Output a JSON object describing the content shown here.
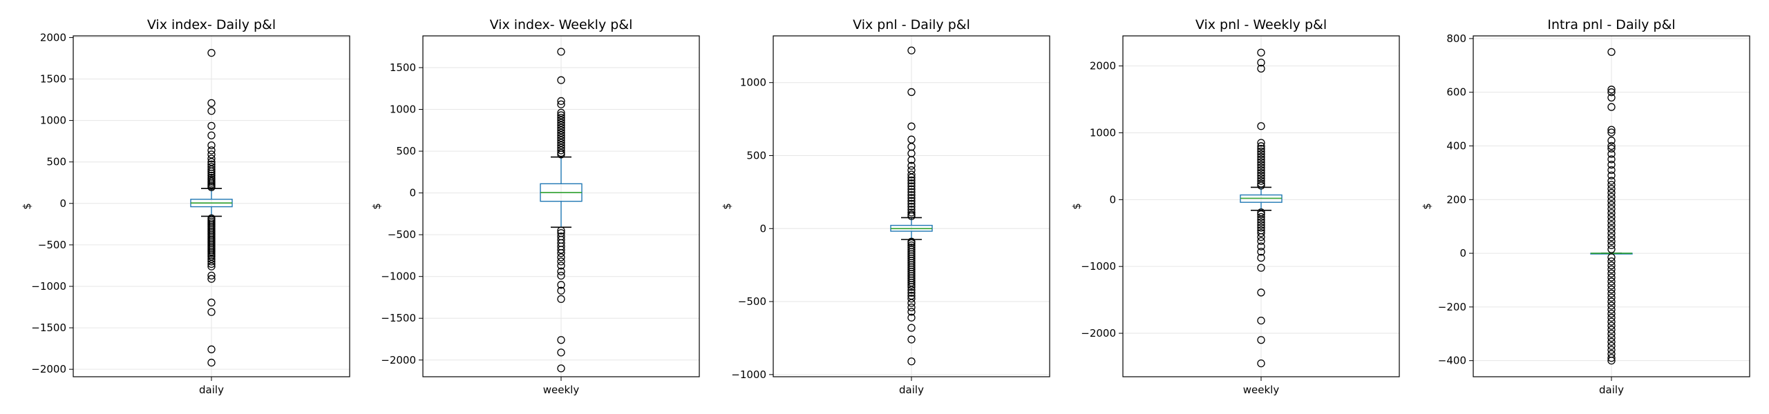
{
  "chart_data": [
    {
      "type": "box",
      "title": "Vix index- Daily p&l",
      "xlabel": "",
      "ylabel": "$",
      "categories": [
        "daily"
      ],
      "ylim": [
        -2090,
        2020
      ],
      "yticks": [
        -2000,
        -1500,
        -1000,
        -500,
        0,
        500,
        1000,
        1500,
        2000
      ],
      "grid": true,
      "box": {
        "q1": -40,
        "median": 5,
        "q3": 50,
        "whisker_low": -155,
        "whisker_high": 180
      },
      "outliers": [
        1815,
        1210,
        1115,
        935,
        820,
        700,
        640,
        590,
        540,
        500,
        470,
        440,
        410,
        385,
        360,
        335,
        310,
        290,
        270,
        250,
        230,
        210,
        195,
        -180,
        -200,
        -220,
        -240,
        -260,
        -280,
        -300,
        -320,
        -340,
        -360,
        -380,
        -400,
        -420,
        -440,
        -460,
        -480,
        -500,
        -520,
        -540,
        -560,
        -580,
        -600,
        -620,
        -640,
        -670,
        -700,
        -730,
        -760,
        -870,
        -910,
        -1195,
        -1310,
        -1760,
        -1920
      ],
      "colors": {
        "box": "#1f77b4",
        "median": "#2ca02c",
        "outlier": "#000000"
      }
    },
    {
      "type": "box",
      "title": "Vix index- Weekly p&l",
      "xlabel": "",
      "ylabel": "$",
      "categories": [
        "weekly"
      ],
      "ylim": [
        -2200,
        1880
      ],
      "yticks": [
        -2000,
        -1500,
        -1000,
        -500,
        0,
        500,
        1000,
        1500
      ],
      "grid": true,
      "box": {
        "q1": -100,
        "median": 5,
        "q3": 110,
        "whisker_low": -410,
        "whisker_high": 430
      },
      "outliers": [
        1690,
        1350,
        1100,
        1060,
        960,
        930,
        900,
        870,
        840,
        810,
        780,
        750,
        720,
        690,
        660,
        630,
        600,
        570,
        540,
        510,
        480,
        460,
        -450,
        -480,
        -520,
        -560,
        -600,
        -640,
        -680,
        -720,
        -770,
        -820,
        -870,
        -940,
        -990,
        -1100,
        -1170,
        -1270,
        -1760,
        -1910,
        -2100
      ],
      "colors": {
        "box": "#1f77b4",
        "median": "#2ca02c",
        "outlier": "#000000"
      }
    },
    {
      "type": "box",
      "title": "Vix pnl - Daily p&l",
      "xlabel": "",
      "ylabel": "$",
      "categories": [
        "daily"
      ],
      "ylim": [
        -1015,
        1320
      ],
      "yticks": [
        -1000,
        -500,
        0,
        500,
        1000
      ],
      "grid": true,
      "box": {
        "q1": -18,
        "median": 0,
        "q3": 22,
        "whisker_low": -75,
        "whisker_high": 75
      },
      "outliers": [
        1220,
        935,
        700,
        610,
        560,
        515,
        470,
        430,
        400,
        370,
        350,
        330,
        310,
        290,
        270,
        250,
        230,
        210,
        190,
        170,
        150,
        130,
        110,
        95,
        85,
        -90,
        -100,
        -115,
        -130,
        -145,
        -160,
        -175,
        -190,
        -205,
        -220,
        -235,
        -250,
        -265,
        -280,
        -295,
        -310,
        -325,
        -340,
        -355,
        -370,
        -385,
        -400,
        -420,
        -440,
        -460,
        -480,
        -510,
        -540,
        -570,
        -610,
        -680,
        -760,
        -910
      ],
      "colors": {
        "box": "#1f77b4",
        "median": "#2ca02c",
        "outlier": "#000000"
      }
    },
    {
      "type": "box",
      "title": "Vix pnl - Weekly p&l",
      "xlabel": "",
      "ylabel": "$",
      "categories": [
        "weekly"
      ],
      "ylim": [
        -2650,
        2450
      ],
      "yticks": [
        -2000,
        -1000,
        0,
        1000,
        2000
      ],
      "grid": true,
      "box": {
        "q1": -40,
        "median": 20,
        "q3": 70,
        "whisker_low": -160,
        "whisker_high": 185
      },
      "outliers": [
        2200,
        2050,
        1960,
        1100,
        850,
        800,
        760,
        720,
        680,
        640,
        600,
        560,
        520,
        480,
        440,
        400,
        360,
        320,
        280,
        240,
        210,
        -190,
        -220,
        -260,
        -300,
        -340,
        -380,
        -420,
        -460,
        -500,
        -560,
        -620,
        -700,
        -780,
        -870,
        -1020,
        -1390,
        -1810,
        -2100,
        -2450
      ],
      "colors": {
        "box": "#1f77b4",
        "median": "#2ca02c",
        "outlier": "#000000"
      }
    },
    {
      "type": "box",
      "title": "Intra pnl - Daily p&l",
      "xlabel": "",
      "ylabel": "$",
      "categories": [
        "daily"
      ],
      "ylim": [
        -460,
        810
      ],
      "yticks": [
        -400,
        -200,
        0,
        200,
        400,
        600,
        800
      ],
      "grid": true,
      "box": {
        "q1": 0,
        "median": 0,
        "q3": 0,
        "whisker_low": 0,
        "whisker_high": 0
      },
      "outliers": [
        750,
        610,
        600,
        580,
        545,
        460,
        450,
        420,
        400,
        390,
        370,
        350,
        330,
        310,
        290,
        270,
        255,
        240,
        225,
        210,
        195,
        180,
        165,
        150,
        135,
        120,
        105,
        90,
        75,
        60,
        45,
        30,
        15,
        -15,
        -30,
        -45,
        -60,
        -75,
        -90,
        -105,
        -120,
        -135,
        -150,
        -165,
        -180,
        -195,
        -210,
        -225,
        -240,
        -255,
        -270,
        -285,
        -300,
        -315,
        -330,
        -345,
        -360,
        -375,
        -390,
        -400
      ],
      "colors": {
        "box": "#1f77b4",
        "median": "#2ca02c",
        "outlier": "#000000"
      }
    }
  ]
}
